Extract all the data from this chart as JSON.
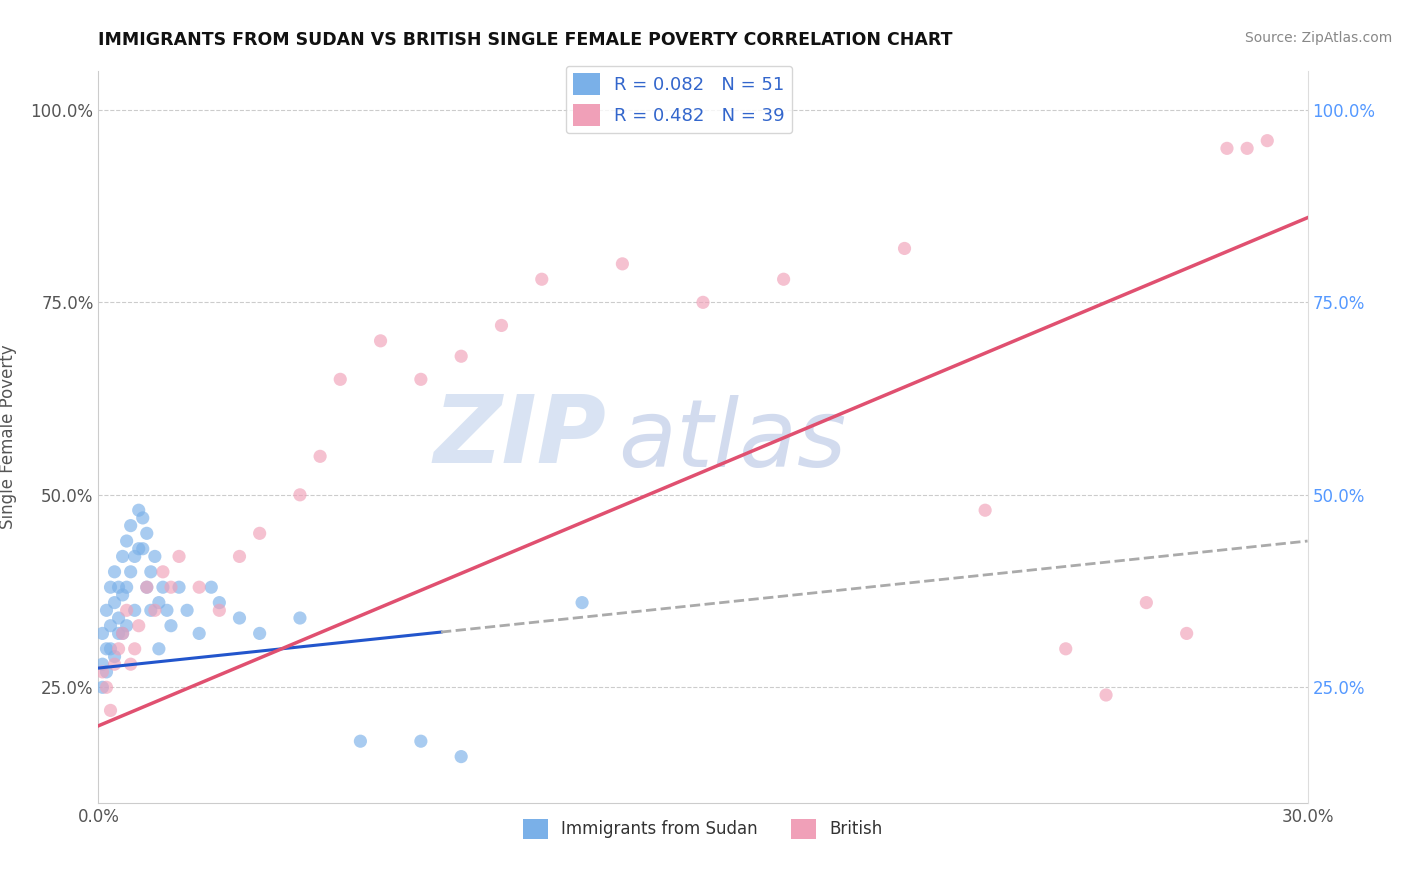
{
  "title": "IMMIGRANTS FROM SUDAN VS BRITISH SINGLE FEMALE POVERTY CORRELATION CHART",
  "source": "Source: ZipAtlas.com",
  "xlabel": "",
  "ylabel": "Single Female Poverty",
  "xlim": [
    0.0,
    0.3
  ],
  "ylim": [
    0.1,
    1.05
  ],
  "color_blue": "#7ab0e8",
  "color_pink": "#f0a0b8",
  "color_blue_line": "#2255cc",
  "color_pink_line": "#e05070",
  "color_dashed": "#aaaaaa",
  "watermark_zip": "ZIP",
  "watermark_atlas": "atlas",
  "background_color": "#ffffff",
  "blue_scatter_x": [
    0.001,
    0.001,
    0.001,
    0.002,
    0.002,
    0.002,
    0.003,
    0.003,
    0.003,
    0.004,
    0.004,
    0.004,
    0.005,
    0.005,
    0.005,
    0.006,
    0.006,
    0.006,
    0.007,
    0.007,
    0.007,
    0.008,
    0.008,
    0.009,
    0.009,
    0.01,
    0.01,
    0.011,
    0.011,
    0.012,
    0.012,
    0.013,
    0.013,
    0.014,
    0.015,
    0.015,
    0.016,
    0.017,
    0.018,
    0.02,
    0.022,
    0.025,
    0.028,
    0.03,
    0.035,
    0.04,
    0.05,
    0.065,
    0.08,
    0.09,
    0.12
  ],
  "blue_scatter_y": [
    0.28,
    0.32,
    0.25,
    0.3,
    0.35,
    0.27,
    0.33,
    0.38,
    0.3,
    0.36,
    0.4,
    0.29,
    0.34,
    0.38,
    0.32,
    0.42,
    0.37,
    0.32,
    0.44,
    0.38,
    0.33,
    0.46,
    0.4,
    0.42,
    0.35,
    0.48,
    0.43,
    0.47,
    0.43,
    0.45,
    0.38,
    0.4,
    0.35,
    0.42,
    0.36,
    0.3,
    0.38,
    0.35,
    0.33,
    0.38,
    0.35,
    0.32,
    0.38,
    0.36,
    0.34,
    0.32,
    0.34,
    0.18,
    0.18,
    0.16,
    0.36
  ],
  "pink_scatter_x": [
    0.001,
    0.002,
    0.003,
    0.004,
    0.005,
    0.006,
    0.007,
    0.008,
    0.009,
    0.01,
    0.012,
    0.014,
    0.016,
    0.018,
    0.02,
    0.025,
    0.03,
    0.035,
    0.04,
    0.05,
    0.055,
    0.06,
    0.07,
    0.08,
    0.09,
    0.1,
    0.11,
    0.13,
    0.15,
    0.17,
    0.2,
    0.22,
    0.24,
    0.25,
    0.26,
    0.27,
    0.28,
    0.285,
    0.29
  ],
  "pink_scatter_y": [
    0.27,
    0.25,
    0.22,
    0.28,
    0.3,
    0.32,
    0.35,
    0.28,
    0.3,
    0.33,
    0.38,
    0.35,
    0.4,
    0.38,
    0.42,
    0.38,
    0.35,
    0.42,
    0.45,
    0.5,
    0.55,
    0.65,
    0.7,
    0.65,
    0.68,
    0.72,
    0.78,
    0.8,
    0.75,
    0.78,
    0.82,
    0.48,
    0.3,
    0.24,
    0.36,
    0.32,
    0.95,
    0.95,
    0.96
  ],
  "blue_trend_x0": 0.0,
  "blue_trend_x_solid_end": 0.085,
  "blue_trend_x_dash_end": 0.3,
  "blue_trend_y0": 0.275,
  "blue_trend_slope": 0.55,
  "pink_trend_x0": 0.0,
  "pink_trend_x_end": 0.3,
  "pink_trend_y0": 0.2,
  "pink_trend_slope": 2.2
}
